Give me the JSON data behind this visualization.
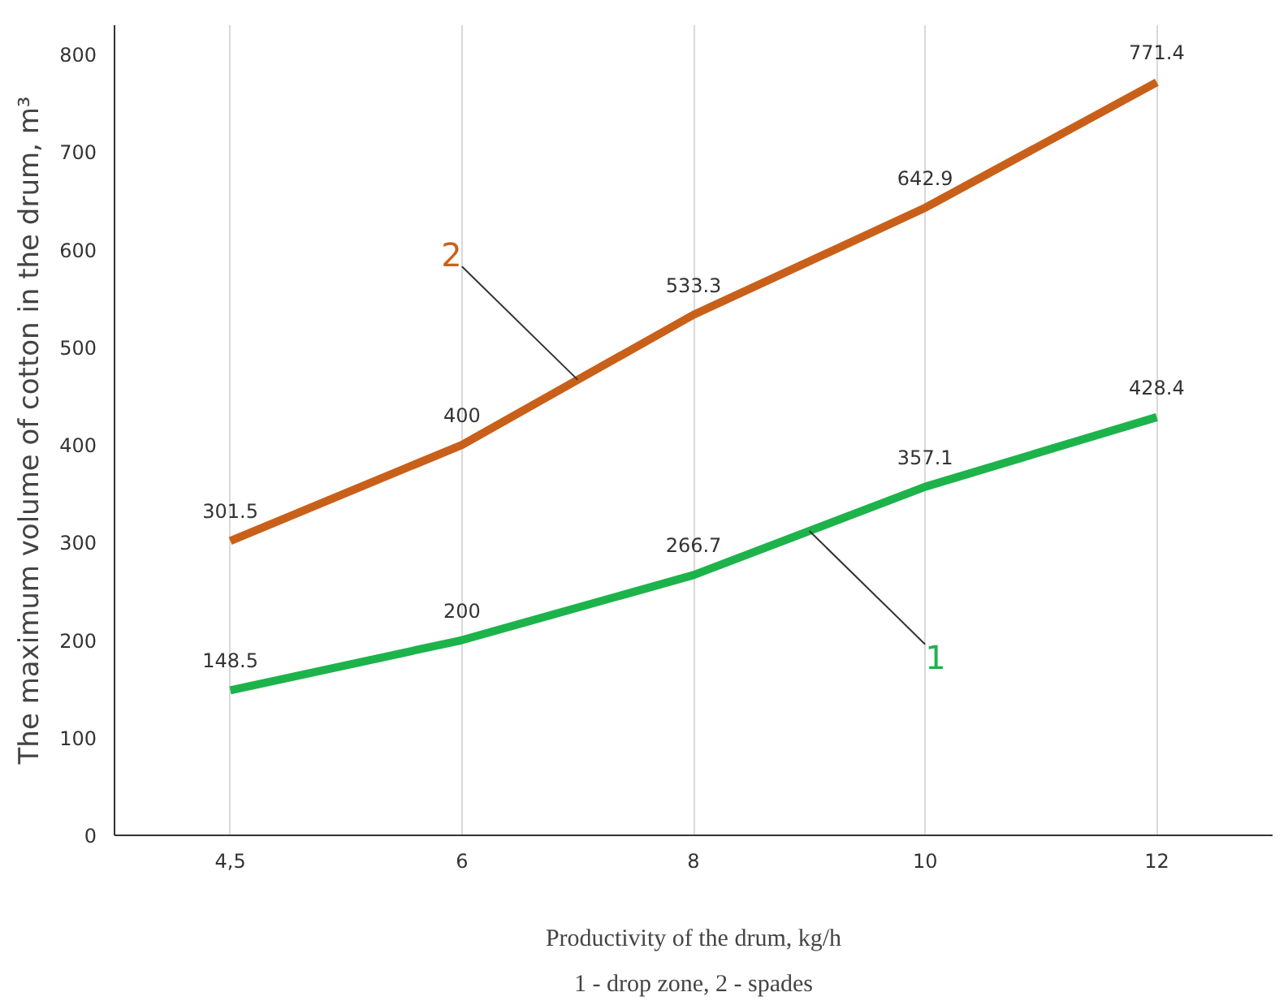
{
  "chart_data": {
    "type": "line",
    "xlabel": "Productivity of the drum, kg/h",
    "ylabel": "The maximum volume of cotton in the drum, m³",
    "annotations": [
      "1 - drop zone, 2 - spades"
    ],
    "categories": [
      "4,5",
      "6",
      "8",
      "10",
      "12"
    ],
    "series": [
      {
        "name": "1",
        "color": "#1db34b",
        "values": [
          148.5,
          200,
          266.7,
          357.1,
          428.4
        ]
      },
      {
        "name": "2",
        "color": "#c9601a",
        "values": [
          301.5,
          400,
          533.3,
          642.9,
          771.4
        ]
      }
    ],
    "ylim": [
      0,
      830
    ],
    "yticks": [
      0,
      100,
      200,
      300,
      400,
      500,
      600,
      700,
      800
    ],
    "grid": "x",
    "data_labels": true,
    "legend": false,
    "marker": "none",
    "line_style": "solid"
  }
}
